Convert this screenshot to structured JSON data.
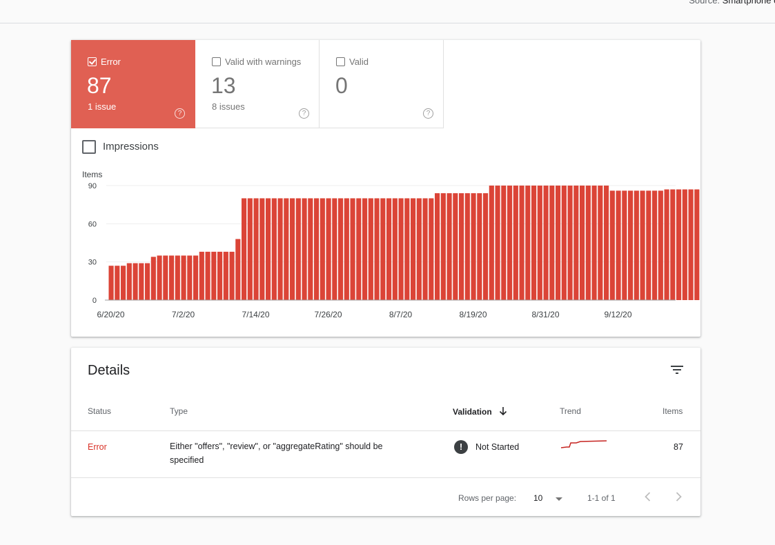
{
  "header": {
    "source_label": "Source:",
    "source_value": "Smartphone crawler"
  },
  "tiles": [
    {
      "label": "Error",
      "count": "87",
      "sub": "1 issue",
      "help": "?"
    },
    {
      "label": "Valid with warnings",
      "count": "13",
      "sub": "8 issues",
      "help": "?"
    },
    {
      "label": "Valid",
      "count": "0",
      "sub": "",
      "help": "?"
    }
  ],
  "impressions": {
    "label": "Impressions"
  },
  "chart_data": {
    "type": "bar",
    "ylabel": "Items",
    "ylim": [
      0,
      90
    ],
    "yticks": [
      "0",
      "30",
      "60",
      "90"
    ],
    "xticks": [
      "6/20/20",
      "7/2/20",
      "7/14/20",
      "7/26/20",
      "8/7/20",
      "8/19/20",
      "8/31/20",
      "9/12/20"
    ],
    "x_start": "6/20/20",
    "color": "#db4437",
    "values": [
      27,
      27,
      27,
      29,
      29,
      29,
      29,
      34,
      35,
      35,
      35,
      35,
      35,
      35,
      35,
      38,
      38,
      38,
      38,
      38,
      38,
      48,
      80,
      80,
      80,
      80,
      80,
      80,
      80,
      80,
      80,
      80,
      80,
      80,
      80,
      80,
      80,
      80,
      80,
      80,
      80,
      80,
      80,
      80,
      80,
      80,
      80,
      80,
      80,
      80,
      80,
      80,
      80,
      80,
      84,
      84,
      84,
      84,
      84,
      84,
      84,
      84,
      84,
      90,
      90,
      90,
      90,
      90,
      90,
      90,
      90,
      90,
      90,
      90,
      90,
      90,
      90,
      90,
      90,
      90,
      90,
      90,
      90,
      86,
      86,
      86,
      86,
      86,
      86,
      86,
      86,
      86,
      87,
      87,
      87,
      87,
      87,
      87
    ]
  },
  "details": {
    "title": "Details",
    "columns": {
      "status": "Status",
      "type": "Type",
      "validation": "Validation",
      "trend": "Trend",
      "items": "Items"
    },
    "rows": [
      {
        "status": "Error",
        "type": "Either \"offers\", \"review\", or \"aggregateRating\" should be specified",
        "validation_icon": "!",
        "validation": "Not Started",
        "items": "87"
      }
    ],
    "footer": {
      "rows_per_page_label": "Rows per page:",
      "rows_per_page": "10",
      "range": "1-1 of 1"
    }
  },
  "colors": {
    "error": "#e06053",
    "bar": "#db4437",
    "status_error_text": "#d93025"
  }
}
